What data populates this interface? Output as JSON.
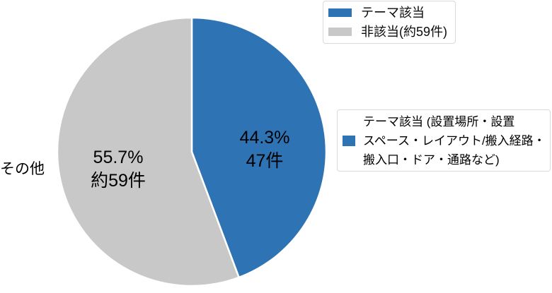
{
  "chart_data": {
    "type": "pie",
    "title": "",
    "start_angle_deg": 0,
    "direction": "clockwise",
    "legend_position": "top-right",
    "slices": [
      {
        "name": "テーマ該当",
        "value": 44.3,
        "pct_label": "44.3%",
        "count_label": "47件",
        "color": "#2e74b5"
      },
      {
        "name": "非該当",
        "value": 55.7,
        "pct_label": "55.7%",
        "count_label": "約59件",
        "color": "#c8c8c8"
      }
    ],
    "separator_color": "#ffffff"
  },
  "legend": {
    "items": [
      {
        "label": "テーマ該当",
        "color": "#2e74b5"
      },
      {
        "label": "非該当(約59件)",
        "color": "#c8c8c8"
      }
    ]
  },
  "callout": {
    "color": "#2e74b5",
    "text": "テーマ該当 (設置場所・設置スペース・レイアウト/搬入経路・搬入口・ドア・通路など)",
    "lines": [
      "テーマ該当 (設置場所・設置",
      "スペース・レイアウト/搬入経路・",
      "搬入口・ドア・通路など)"
    ]
  },
  "labels": {
    "other": "その他"
  }
}
